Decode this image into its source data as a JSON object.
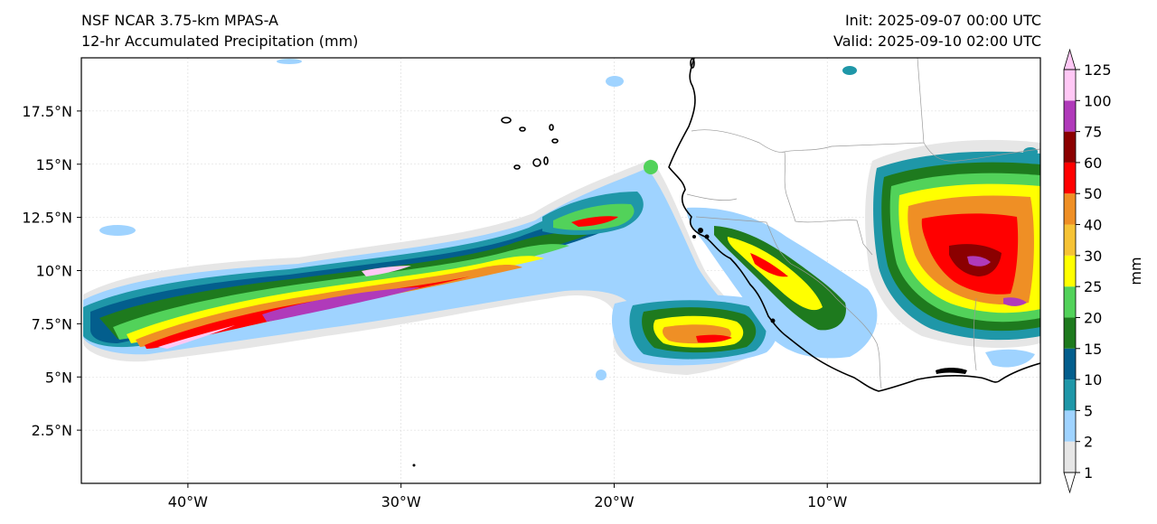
{
  "titles": {
    "model": "NSF NCAR 3.75-km MPAS-A",
    "field": "12-hr Accumulated Precipitation (mm)",
    "init": "Init: 2025-09-07 00:00 UTC",
    "valid": "Valid: 2025-09-10 02:00 UTC"
  },
  "map": {
    "lon_ticks": [
      {
        "lon": -40,
        "label": "40°W"
      },
      {
        "lon": -30,
        "label": "30°W"
      },
      {
        "lon": -20,
        "label": "20°W"
      },
      {
        "lon": -10,
        "label": "10°W"
      }
    ],
    "lat_ticks": [
      {
        "lat": 2.5,
        "label": "2.5°N"
      },
      {
        "lat": 5,
        "label": "5°N"
      },
      {
        "lat": 7.5,
        "label": "7.5°N"
      },
      {
        "lat": 10,
        "label": "10°N"
      },
      {
        "lat": 12.5,
        "label": "12.5°N"
      },
      {
        "lat": 15,
        "label": "15°N"
      },
      {
        "lat": 17.5,
        "label": "17.5°N"
      }
    ],
    "extent": {
      "lon_min": -45,
      "lon_max": 0,
      "lat_min": 0,
      "lat_max": 20
    },
    "colors": {
      "coast": "#000000",
      "borders": "#9a9a9a",
      "grid": "#d9d9d9"
    }
  },
  "colorbar": {
    "units": "mm",
    "boundaries": [
      1,
      2,
      5,
      10,
      15,
      20,
      25,
      30,
      40,
      50,
      60,
      75,
      100,
      125
    ],
    "colors": [
      "#e6e6e6",
      "#9fd3ff",
      "#1f97a8",
      "#035e8d",
      "#1e7a1e",
      "#52d25a",
      "#ffff00",
      "#f6c335",
      "#ef8f25",
      "#ff0000",
      "#8b0000",
      "#b03aba",
      "#ffc8f5"
    ]
  }
}
